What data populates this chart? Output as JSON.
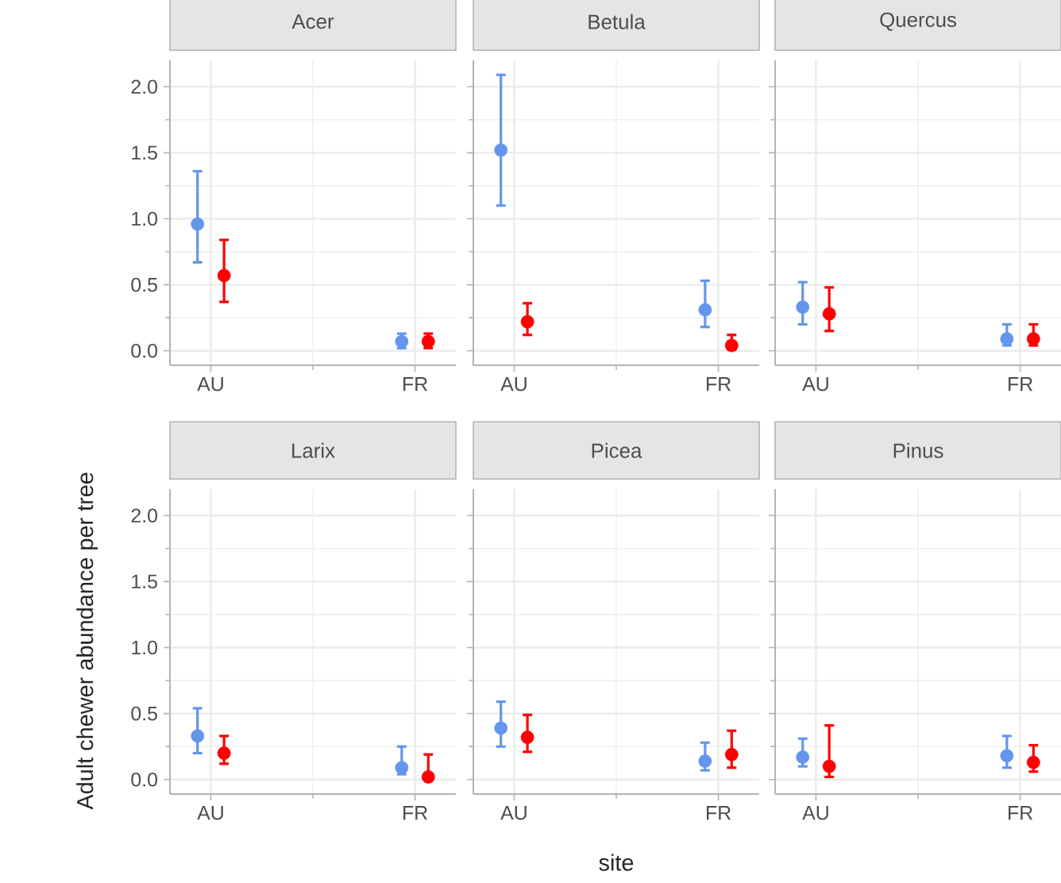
{
  "chart_data": [
    {
      "type": "scatter",
      "title": "Acer",
      "ylabel": "Adult chewer abundance per tree",
      "categories": [
        "AU",
        "FR"
      ],
      "series": [
        {
          "color": "#6495ed",
          "values": [
            0.96,
            0.07
          ],
          "errors": [
            [
              0.67,
              1.36
            ],
            [
              0.02,
              0.13
            ]
          ]
        },
        {
          "color": "#ff0000",
          "values": [
            0.57,
            0.07
          ],
          "errors": [
            [
              0.37,
              0.84
            ],
            [
              0.02,
              0.13
            ]
          ]
        }
      ],
      "ylim": [
        -0.11,
        2.2
      ],
      "yticks": [
        {
          "value": 0,
          "label": "0.0"
        },
        {
          "value": 0.5,
          "label": "0.5"
        },
        {
          "value": 1,
          "label": "1.0"
        },
        {
          "value": 1.5,
          "label": "1.5"
        },
        {
          "value": 2,
          "label": "2.0"
        }
      ],
      "grid": true,
      "marker": "circle"
    },
    {
      "type": "scatter",
      "title": "Betula",
      "categories": [
        "AU",
        "FR"
      ],
      "series": [
        {
          "color": "#6495ed",
          "values": [
            1.52,
            0.31
          ],
          "errors": [
            [
              1.1,
              2.09
            ],
            [
              0.18,
              0.53
            ]
          ]
        },
        {
          "color": "#ff0000",
          "values": [
            0.22,
            0.04
          ],
          "errors": [
            [
              0.12,
              0.36
            ],
            [
              0.01,
              0.12
            ]
          ]
        }
      ],
      "ylim": [
        -0.11,
        2.2
      ],
      "yticks": [
        0,
        0.5,
        1,
        1.5,
        2
      ],
      "grid": true,
      "marker": "circle",
      "tick_labels": "x"
    },
    {
      "type": "scatter",
      "title": "Quercus",
      "categories": [
        "AU",
        "FR"
      ],
      "series": [
        {
          "color": "#6495ed",
          "values": [
            0.33,
            0.09
          ],
          "errors": [
            [
              0.2,
              0.52
            ],
            [
              0.04,
              0.2
            ]
          ]
        },
        {
          "color": "#ff0000",
          "values": [
            0.28,
            0.09
          ],
          "errors": [
            [
              0.15,
              0.48
            ],
            [
              0.04,
              0.2
            ]
          ]
        }
      ],
      "ylim": [
        -0.11,
        2.2
      ],
      "yticks": [
        0,
        0.5,
        1,
        1.5,
        2
      ],
      "grid": true,
      "marker": "circle",
      "tick_labels": "x"
    },
    {
      "type": "scatter",
      "title": "Larix",
      "categories": [
        "AU",
        "FR"
      ],
      "series": [
        {
          "color": "#6495ed",
          "values": [
            0.33,
            0.09
          ],
          "errors": [
            [
              0.2,
              0.54
            ],
            [
              0.04,
              0.25
            ]
          ]
        },
        {
          "color": "#ff0000",
          "values": [
            0.2,
            0.02
          ],
          "errors": [
            [
              0.12,
              0.33
            ],
            [
              0.0,
              0.19
            ]
          ]
        }
      ],
      "ylim": [
        -0.11,
        2.2
      ],
      "yticks": [
        {
          "value": 0,
          "label": "0.0"
        },
        {
          "value": 0.5,
          "label": "0.5"
        },
        {
          "value": 1,
          "label": "1.0"
        },
        {
          "value": 1.5,
          "label": "1.5"
        },
        {
          "value": 2,
          "label": "2.0"
        }
      ],
      "grid": true,
      "marker": "circle"
    },
    {
      "type": "scatter",
      "title": "Picea",
      "xlabel": "site",
      "categories": [
        "AU",
        "FR"
      ],
      "series": [
        {
          "color": "#6495ed",
          "values": [
            0.39,
            0.14
          ],
          "errors": [
            [
              0.25,
              0.59
            ],
            [
              0.07,
              0.28
            ]
          ]
        },
        {
          "color": "#ff0000",
          "values": [
            0.32,
            0.19
          ],
          "errors": [
            [
              0.21,
              0.49
            ],
            [
              0.09,
              0.37
            ]
          ]
        }
      ],
      "ylim": [
        -0.11,
        2.2
      ],
      "yticks": [
        0,
        0.5,
        1,
        1.5,
        2
      ],
      "grid": true,
      "marker": "circle",
      "tick_labels": "x"
    },
    {
      "type": "scatter",
      "title": "Pinus",
      "categories": [
        "AU",
        "FR"
      ],
      "series": [
        {
          "color": "#6495ed",
          "values": [
            0.17,
            0.18
          ],
          "errors": [
            [
              0.1,
              0.31
            ],
            [
              0.09,
              0.33
            ]
          ]
        },
        {
          "color": "#ff0000",
          "values": [
            0.1,
            0.13
          ],
          "errors": [
            [
              0.02,
              0.41
            ],
            [
              0.06,
              0.26
            ]
          ]
        }
      ],
      "ylim": [
        -0.11,
        2.2
      ],
      "yticks": [
        0,
        0.5,
        1,
        1.5,
        2
      ],
      "grid": true,
      "marker": "circle",
      "tick_labels": "x"
    }
  ]
}
